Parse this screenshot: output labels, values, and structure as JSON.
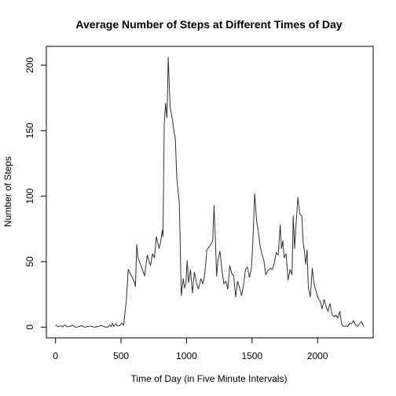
{
  "chart_data": {
    "type": "line",
    "title": "Average Number of Steps at Different Times of Day",
    "xlabel": "Time of Day (in Five Minute Intervals)",
    "ylabel": "Number of Steps",
    "xlim": [
      -70,
      2425
    ],
    "ylim": [
      -8.2,
      214.4
    ],
    "xticks": [
      0,
      500,
      1000,
      1500,
      2000
    ],
    "yticks": [
      0,
      50,
      100,
      150,
      200
    ],
    "xtick_labels": [
      "0",
      "500",
      "1000",
      "1500",
      "2000"
    ],
    "ytick_labels": [
      "0",
      "50",
      "100",
      "150",
      "200"
    ],
    "grid": false,
    "legend": "none",
    "line_color": "#303030",
    "x": [
      0,
      20,
      40,
      55,
      70,
      90,
      110,
      130,
      150,
      170,
      200,
      220,
      240,
      260,
      300,
      330,
      350,
      380,
      400,
      415,
      425,
      435,
      445,
      460,
      475,
      490,
      505,
      520,
      540,
      555,
      570,
      585,
      600,
      610,
      620,
      630,
      645,
      660,
      680,
      700,
      715,
      725,
      740,
      755,
      770,
      790,
      800,
      815,
      820,
      830,
      840,
      850,
      855,
      860,
      875,
      890,
      905,
      915,
      925,
      935,
      945,
      960,
      975,
      985,
      995,
      1005,
      1015,
      1030,
      1045,
      1060,
      1075,
      1090,
      1110,
      1125,
      1140,
      1155,
      1170,
      1185,
      1200,
      1210,
      1220,
      1230,
      1240,
      1255,
      1270,
      1285,
      1300,
      1315,
      1330,
      1345,
      1360,
      1375,
      1390,
      1405,
      1420,
      1435,
      1450,
      1465,
      1480,
      1495,
      1505,
      1520,
      1535,
      1545,
      1560,
      1575,
      1590,
      1605,
      1620,
      1640,
      1655,
      1670,
      1685,
      1700,
      1715,
      1725,
      1735,
      1745,
      1760,
      1775,
      1790,
      1805,
      1815,
      1825,
      1835,
      1850,
      1865,
      1880,
      1890,
      1900,
      1910,
      1920,
      1930,
      1945,
      1960,
      1975,
      1990,
      2005,
      2020,
      2035,
      2050,
      2065,
      2080,
      2095,
      2110,
      2125,
      2140,
      2155,
      2170,
      2185,
      2200,
      2215,
      2230,
      2245,
      2260,
      2275,
      2290,
      2305,
      2320,
      2335,
      2355
    ],
    "y": [
      1.7,
      0.3,
      1.0,
      0.2,
      1.6,
      0.3,
      0.5,
      1.5,
      0.0,
      0.2,
      1.1,
      0.0,
      0.3,
      0.8,
      0.0,
      0.6,
      1.2,
      0.0,
      0.1,
      1.5,
      0.3,
      3.0,
      0.5,
      2.5,
      0.8,
      1.2,
      3.0,
      1.6,
      20.0,
      44.0,
      41.0,
      38.0,
      35.0,
      31.0,
      63.0,
      53.0,
      49.0,
      45.0,
      39.0,
      55.0,
      50.0,
      47.0,
      56.0,
      53.0,
      69.0,
      60.0,
      64.0,
      74.0,
      69.0,
      155.0,
      171.0,
      160.0,
      179.0,
      206.0,
      168.0,
      160.0,
      149.0,
      143.0,
      115.0,
      104.0,
      95.0,
      24.0,
      37.0,
      30.0,
      33.0,
      51.0,
      34.0,
      44.0,
      26.0,
      42.0,
      34.0,
      29.0,
      37.0,
      33.0,
      41.0,
      59.0,
      61.0,
      63.0,
      66.0,
      93.0,
      67.0,
      39.0,
      51.0,
      58.0,
      44.0,
      33.0,
      35.0,
      29.0,
      47.0,
      41.0,
      39.0,
      23.0,
      35.0,
      30.0,
      24.0,
      32.0,
      44.0,
      46.0,
      38.0,
      45.0,
      62.0,
      102.0,
      81.0,
      75.0,
      63.0,
      56.0,
      51.0,
      40.0,
      43.0,
      45.0,
      44.0,
      49.0,
      57.0,
      55.0,
      78.0,
      60.0,
      66.0,
      53.0,
      56.0,
      36.0,
      44.0,
      40.0,
      85.0,
      60.0,
      77.0,
      99.0,
      86.0,
      85.0,
      65.0,
      58.0,
      48.0,
      59.0,
      30.0,
      23.0,
      45.0,
      32.0,
      27.0,
      22.0,
      20.0,
      14.0,
      21.0,
      16.0,
      12.0,
      18.0,
      10.0,
      8.0,
      9.0,
      7.0,
      12.0,
      2.0,
      0.5,
      1.0,
      0.3,
      3.0,
      2.5,
      5.0,
      1.5,
      0.5,
      2.5,
      4.2,
      0.5
    ]
  }
}
